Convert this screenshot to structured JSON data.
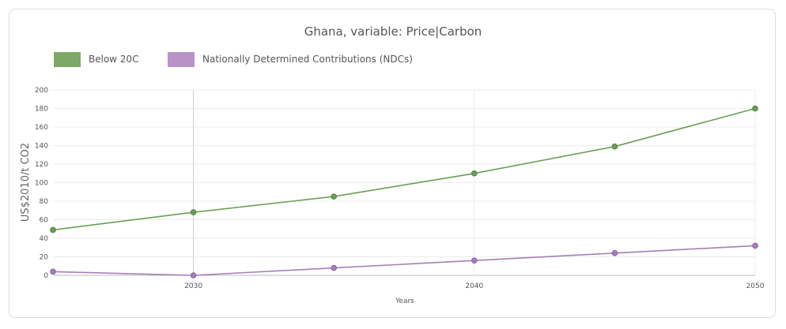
{
  "chart_data": {
    "type": "line",
    "title": "Ghana, variable: Price|Carbon",
    "xlabel": "Years",
    "ylabel": "US$2010/t CO2",
    "xlim": [
      2025,
      2050
    ],
    "ylim": [
      0,
      200
    ],
    "x_ticks": [
      "2030",
      "2040",
      "2050"
    ],
    "y_ticks": [
      "0",
      "20",
      "40",
      "60",
      "80",
      "100",
      "120",
      "140",
      "160",
      "180",
      "200"
    ],
    "grid": true,
    "legend_position": "top-left",
    "series": [
      {
        "name": "Below 20C",
        "color": "#6b9e57",
        "legend_color": "#7ea868",
        "x": [
          2025,
          2030,
          2035,
          2040,
          2045,
          2050
        ],
        "values": [
          49,
          68,
          85,
          110,
          139,
          180
        ]
      },
      {
        "name": "Nationally Determined Contributions (NDCs)",
        "color": "#a57fb8",
        "legend_color": "#b893c6",
        "x": [
          2025,
          2030,
          2035,
          2040,
          2045,
          2050
        ],
        "values": [
          4,
          0,
          8,
          16,
          24,
          32
        ]
      }
    ]
  }
}
